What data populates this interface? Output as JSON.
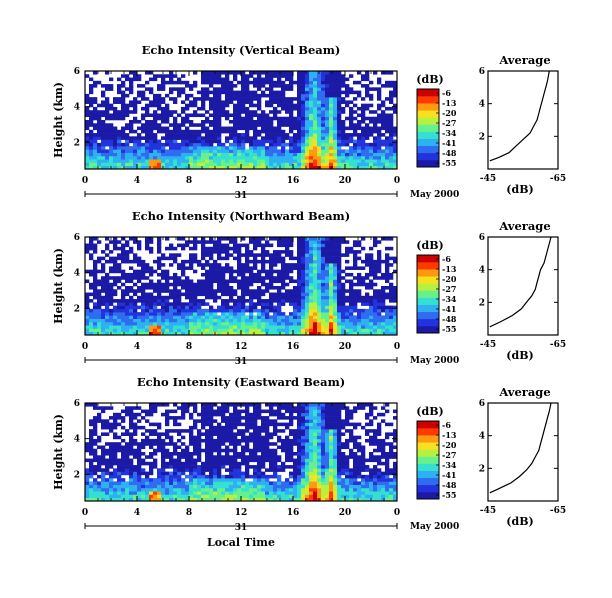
{
  "chart_data": {
    "type": "heatmap",
    "xlabel": "Local Time",
    "x_ticks": [
      "0",
      "4",
      "8",
      "12",
      "16",
      "20",
      "0"
    ],
    "xlim_hours": [
      0,
      24
    ],
    "ylim_km": [
      0.5,
      6
    ],
    "y_ticks": [
      "2",
      "4",
      "6"
    ],
    "date_day": "31",
    "date_month": "May 2000",
    "colorbar": {
      "unit": "(dB)",
      "ticks": [
        "-6",
        "-13",
        "-20",
        "-27",
        "-34",
        "-41",
        "-48",
        "-55"
      ],
      "colors": [
        "#1a1aa6",
        "#2233dd",
        "#2f6cf0",
        "#2fb0f2",
        "#34e0d0",
        "#66f08e",
        "#b8f040",
        "#f8e020",
        "#ff9a10",
        "#ff3a00",
        "#cc0000"
      ]
    },
    "panels": [
      {
        "title": "Echo Intensity (Vertical Beam)",
        "ylabel": "Height (km)",
        "profile": {
          "title": "Average",
          "xlabel": "(dB)",
          "x_ticks": [
            "-45",
            "-65"
          ],
          "y_ticks": [
            "2",
            "4",
            "6"
          ],
          "xlim": [
            -45,
            -65
          ],
          "ylim": [
            0,
            6
          ],
          "points": [
            [
              -45.5,
              0.5
            ],
            [
              -48,
              0.7
            ],
            [
              -51,
              1.0
            ],
            [
              -53,
              1.4
            ],
            [
              -55,
              1.8
            ],
            [
              -57,
              2.2
            ],
            [
              -58,
              2.6
            ],
            [
              -59,
              3.0
            ],
            [
              -59.5,
              3.4
            ],
            [
              -60,
              3.8
            ],
            [
              -60.5,
              4.2
            ],
            [
              -61,
              4.6
            ],
            [
              -61.5,
              5.0
            ],
            [
              -62,
              5.4
            ],
            [
              -62.5,
              6.0
            ]
          ]
        }
      },
      {
        "title": "Echo Intensity (Northward Beam)",
        "ylabel": "Height (km)",
        "profile": {
          "title": "Average",
          "xlabel": "(dB)",
          "x_ticks": [
            "-45",
            "-65"
          ],
          "y_ticks": [
            "2",
            "4",
            "6"
          ],
          "xlim": [
            -45,
            -65
          ],
          "ylim": [
            0,
            6
          ],
          "points": [
            [
              -45.5,
              0.5
            ],
            [
              -48.5,
              0.8
            ],
            [
              -52,
              1.2
            ],
            [
              -54.5,
              1.6
            ],
            [
              -56,
              2.0
            ],
            [
              -57.5,
              2.4
            ],
            [
              -58.5,
              2.8
            ],
            [
              -59,
              3.2
            ],
            [
              -59.5,
              3.6
            ],
            [
              -60,
              4.0
            ],
            [
              -61,
              4.4
            ],
            [
              -61.5,
              4.8
            ],
            [
              -62,
              5.2
            ],
            [
              -62.5,
              5.6
            ],
            [
              -63,
              6.0
            ]
          ]
        }
      },
      {
        "title": "Echo Intensity (Eastward Beam)",
        "ylabel": "Height (km)",
        "profile": {
          "title": "Average",
          "xlabel": "(dB)",
          "x_ticks": [
            "-45",
            "-65"
          ],
          "y_ticks": [
            "2",
            "4",
            "6"
          ],
          "xlim": [
            -45,
            -65
          ],
          "ylim": [
            0,
            6
          ],
          "points": [
            [
              -45.5,
              0.5
            ],
            [
              -48,
              0.75
            ],
            [
              -51.5,
              1.1
            ],
            [
              -54,
              1.5
            ],
            [
              -56,
              1.9
            ],
            [
              -57.5,
              2.3
            ],
            [
              -58.5,
              2.7
            ],
            [
              -59.5,
              3.1
            ],
            [
              -60,
              3.5
            ],
            [
              -60.5,
              3.9
            ],
            [
              -61,
              4.3
            ],
            [
              -61.5,
              4.7
            ],
            [
              -62,
              5.1
            ],
            [
              -62.5,
              5.5
            ],
            [
              -63,
              6.0
            ]
          ]
        }
      }
    ]
  }
}
